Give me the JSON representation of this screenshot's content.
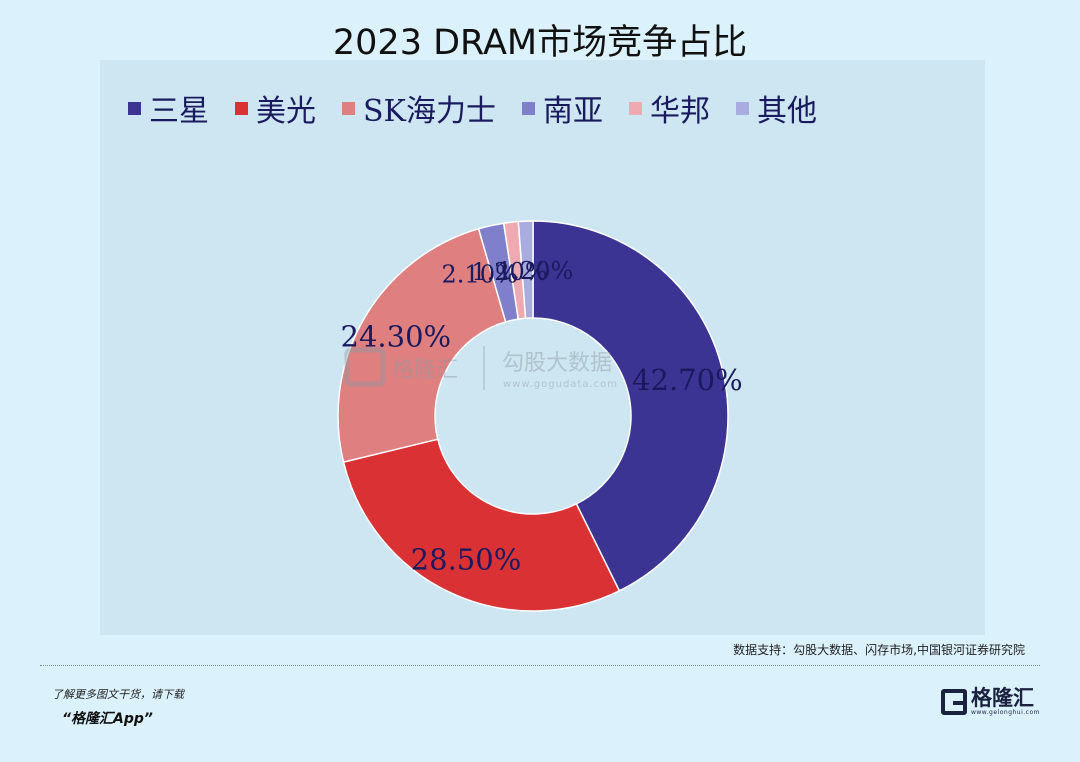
{
  "title": "2023 DRAM市场竞争占比",
  "chart_data": {
    "type": "pie",
    "donut": true,
    "title": "2023 DRAM市场竞争占比",
    "series": [
      {
        "name": "三星",
        "value": 42.7,
        "label": "42.70%",
        "color": "#3b3493"
      },
      {
        "name": "美光",
        "value": 28.5,
        "label": "28.50%",
        "color": "#da3234"
      },
      {
        "name": "SK海力士",
        "value": 24.3,
        "label": "24.30%",
        "color": "#df7f7f"
      },
      {
        "name": "南亚",
        "value": 2.1,
        "label": "2.10%",
        "color": "#7f7fcc"
      },
      {
        "name": "华邦",
        "value": 1.2,
        "label": "1.20%",
        "color": "#eeaab0"
      },
      {
        "name": "其他",
        "value": 1.2,
        "label": "1.20%",
        "color": "#a8acdf"
      }
    ],
    "legend_position": "top"
  },
  "watermark": {
    "brand": "格隆汇",
    "partner": "勾股大数据",
    "url": "www.gogudata.com"
  },
  "source": "数据支持：勾股大数据、闪存市场,中国银河证券研究院",
  "footer": {
    "line1": "了解更多图文干货，请下载",
    "line2": "“格隆汇App”",
    "brand": "格隆汇",
    "brand_sub": "www.gelonghui.com"
  }
}
